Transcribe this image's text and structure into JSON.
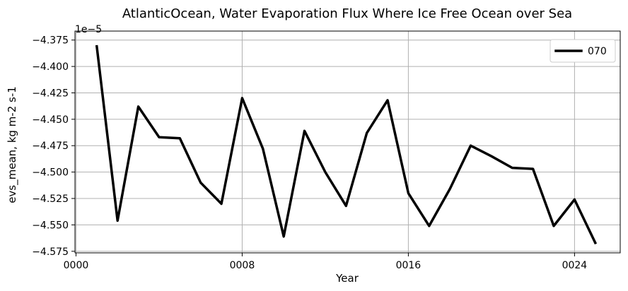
{
  "chart_data": {
    "type": "line",
    "title": "AtlanticOcean, Water Evaporation Flux Where Ice Free Ocean over Sea",
    "xlabel": "Year",
    "ylabel": "evs_mean, kg m-2 s-1",
    "offset_text": "1e−5",
    "x_ticks": [
      {
        "value": 0,
        "label": "0000"
      },
      {
        "value": 8,
        "label": "0008"
      },
      {
        "value": 16,
        "label": "0016"
      },
      {
        "value": 24,
        "label": "0024"
      }
    ],
    "y_ticks": [
      {
        "value": -4.375,
        "label": "−4.375"
      },
      {
        "value": -4.4,
        "label": "−4.400"
      },
      {
        "value": -4.425,
        "label": "−4.425"
      },
      {
        "value": -4.45,
        "label": "−4.450"
      },
      {
        "value": -4.475,
        "label": "−4.475"
      },
      {
        "value": -4.5,
        "label": "−4.500"
      },
      {
        "value": -4.525,
        "label": "−4.525"
      },
      {
        "value": -4.55,
        "label": "−4.550"
      },
      {
        "value": -4.575,
        "label": "−4.575"
      }
    ],
    "xlim": [
      -0.05,
      26.2
    ],
    "ylim": [
      -4.5765,
      -4.3665
    ],
    "grid": true,
    "legend_position": "top-right",
    "series": [
      {
        "name": "070",
        "color": "#000000",
        "x": [
          1,
          2,
          3,
          4,
          5,
          6,
          7,
          8,
          9,
          10,
          11,
          12,
          13,
          14,
          15,
          16,
          17,
          18,
          19,
          20,
          21,
          22,
          23,
          24,
          25
        ],
        "y": [
          -4.381,
          -4.546,
          -4.438,
          -4.467,
          -4.468,
          -4.51,
          -4.53,
          -4.43,
          -4.478,
          -4.561,
          -4.461,
          -4.5,
          -4.532,
          -4.463,
          -4.432,
          -4.52,
          -4.551,
          -4.516,
          -4.475,
          -4.485,
          -4.496,
          -4.497,
          -4.551,
          -4.526,
          -4.567
        ]
      }
    ]
  }
}
